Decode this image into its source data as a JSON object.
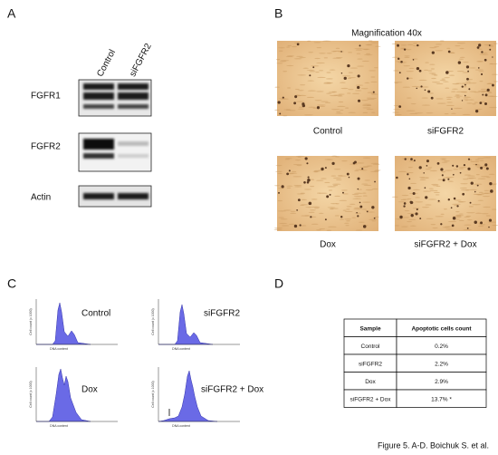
{
  "panels": {
    "A": {
      "label": "A",
      "columns": [
        "Control",
        "siFGFR2"
      ],
      "rows": [
        "FGFR1",
        "FGFR2",
        "Actin"
      ]
    },
    "B": {
      "label": "B",
      "title": "Magnification 40x",
      "captions": [
        "Control",
        "siFGFR2",
        "Dox",
        "siFGFR2 + Dox"
      ]
    },
    "C": {
      "label": "C",
      "plots": [
        {
          "title": "Control",
          "y_label": "Cell count (x 1000)",
          "x_label": "DNA content"
        },
        {
          "title": "siFGFR2",
          "y_label": "Cell count (x 1000)",
          "x_label": "DNA content"
        },
        {
          "title": "Dox",
          "y_label": "Cell count (x 1000)",
          "x_label": "DNA content"
        },
        {
          "title": "siFGFR2 + Dox",
          "y_label": "Cell count (x 1000)",
          "x_label": "DNA content"
        }
      ]
    },
    "D": {
      "label": "D",
      "table": {
        "header": [
          "Sample",
          "Apoptotic cells count"
        ],
        "rows": [
          [
            "Control",
            "0.2%"
          ],
          [
            "siFGFR2",
            "2.2%"
          ],
          [
            "Dox",
            "2.9%"
          ],
          [
            "siFGFR2 + Dox",
            "13.7% *"
          ]
        ]
      }
    }
  },
  "caption": "Figure 5. A-D. Boichuk S. et al."
}
